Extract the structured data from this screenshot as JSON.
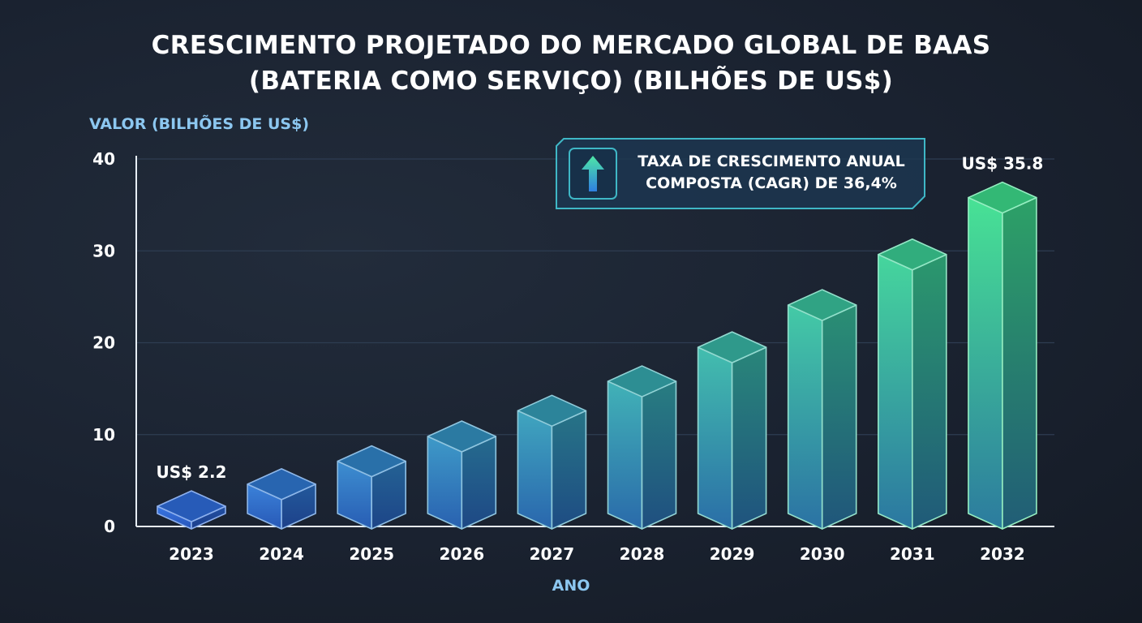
{
  "chart_data": {
    "type": "bar",
    "title": [
      "CRESCIMENTO PROJETADO DO MERCADO GLOBAL DE BAAS",
      "(BATERIA COMO SERVIÇO)  (BILHÕES DE US$)"
    ],
    "ylabel": "VALOR (BILHÕES DE US$)",
    "xlabel": "ANO",
    "categories": [
      "2023",
      "2024",
      "2025",
      "2026",
      "2027",
      "2028",
      "2029",
      "2030",
      "2031",
      "2032"
    ],
    "values": [
      2.2,
      4.6,
      7.1,
      9.8,
      12.6,
      15.8,
      19.5,
      24.1,
      29.6,
      35.8
    ],
    "ylim": [
      0,
      40
    ],
    "yticks": [
      "0",
      "10",
      "20",
      "30",
      "40"
    ],
    "grid": true,
    "data_labels": [
      {
        "category": "2023",
        "text": "US$ 2.2"
      },
      {
        "category": "2032",
        "text": "US$ 35.8"
      }
    ],
    "annotation": {
      "lines": [
        "TAXA DE CRESCIMENTO ANUAL",
        "COMPOSTA (CAGR) DE 36,4%"
      ],
      "icon": "arrow-up-icon"
    },
    "colors": {
      "start_bar": "#2f6fe0",
      "end_bar": "#3ee08f",
      "grid": "#2e3d52",
      "axis": "#e6edf5",
      "accent": "#3fc3c8"
    }
  }
}
